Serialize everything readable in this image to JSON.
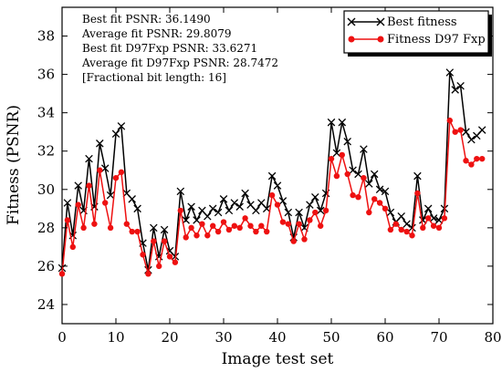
{
  "chart_data": {
    "type": "line",
    "xlabel": "Image test set",
    "ylabel": "Fitness (PSNR)",
    "xlim": [
      0,
      80
    ],
    "ylim": [
      23,
      39.5
    ],
    "xticks": [
      "0",
      "10",
      "20",
      "30",
      "40",
      "50",
      "60",
      "70",
      "80"
    ],
    "yticks": [
      "24",
      "26",
      "28",
      "30",
      "32",
      "34",
      "36",
      "38"
    ],
    "grid": false,
    "legend_position": "top-right",
    "annotations": [
      "Best fit PSNR: 36.1490",
      "Average fit PSNR: 29.8079",
      "Best fit D97Fxp PSNR: 33.6271",
      "Average fit D97Fxp PSNR: 28.7472",
      "[Fractional bit length: 16]"
    ],
    "x": [
      0,
      1,
      2,
      3,
      4,
      5,
      6,
      7,
      8,
      9,
      10,
      11,
      12,
      13,
      14,
      15,
      16,
      17,
      18,
      19,
      20,
      21,
      22,
      23,
      24,
      25,
      26,
      27,
      28,
      29,
      30,
      31,
      32,
      33,
      34,
      35,
      36,
      37,
      38,
      39,
      40,
      41,
      42,
      43,
      44,
      45,
      46,
      47,
      48,
      49,
      50,
      51,
      52,
      53,
      54,
      55,
      56,
      57,
      58,
      59,
      60,
      61,
      62,
      63,
      64,
      65,
      66,
      67,
      68,
      69,
      70,
      71,
      72,
      73,
      74,
      75,
      76,
      77,
      78
    ],
    "series": [
      {
        "name": "Best fitness",
        "color": "#000000",
        "marker": "x",
        "values": [
          25.9,
          29.3,
          27.6,
          30.2,
          28.9,
          31.6,
          29.1,
          32.4,
          31.1,
          29.7,
          32.9,
          33.3,
          29.8,
          29.5,
          29.0,
          27.2,
          25.8,
          28.0,
          26.5,
          27.9,
          26.8,
          26.5,
          29.9,
          28.4,
          29.1,
          28.4,
          28.9,
          28.6,
          29.0,
          28.8,
          29.5,
          28.9,
          29.3,
          29.1,
          29.8,
          29.2,
          28.9,
          29.3,
          29.0,
          30.7,
          30.2,
          29.4,
          28.8,
          27.5,
          28.8,
          28.0,
          29.2,
          29.6,
          28.9,
          29.8,
          33.5,
          31.9,
          33.5,
          32.5,
          31.0,
          30.8,
          32.1,
          30.3,
          30.8,
          30.0,
          29.9,
          28.8,
          28.3,
          28.6,
          28.2,
          28.0,
          30.7,
          28.4,
          29.0,
          28.5,
          28.4,
          29.0,
          36.1,
          35.2,
          35.4,
          33.0,
          32.6,
          32.8,
          33.1
        ]
      },
      {
        "name": "Fitness D97 Fxp",
        "color": "#ee1111",
        "marker": "o",
        "values": [
          25.6,
          28.4,
          27.0,
          29.2,
          28.0,
          30.2,
          28.2,
          31.0,
          29.3,
          28.0,
          30.6,
          30.9,
          28.2,
          27.8,
          27.8,
          26.6,
          25.6,
          27.3,
          26.0,
          27.3,
          26.5,
          26.2,
          28.9,
          27.5,
          28.0,
          27.6,
          28.2,
          27.6,
          28.1,
          27.8,
          28.3,
          27.9,
          28.1,
          28.0,
          28.5,
          28.1,
          27.8,
          28.1,
          27.8,
          29.7,
          29.2,
          28.3,
          28.2,
          27.3,
          28.2,
          27.4,
          28.4,
          28.8,
          28.1,
          28.9,
          31.6,
          30.7,
          31.8,
          30.8,
          29.7,
          29.6,
          30.6,
          28.8,
          29.5,
          29.3,
          29.0,
          27.9,
          28.2,
          27.9,
          27.8,
          27.6,
          29.8,
          28.0,
          28.5,
          28.1,
          28.0,
          28.5,
          33.6,
          33.0,
          33.1,
          31.5,
          31.3,
          31.6,
          31.6
        ]
      }
    ]
  }
}
